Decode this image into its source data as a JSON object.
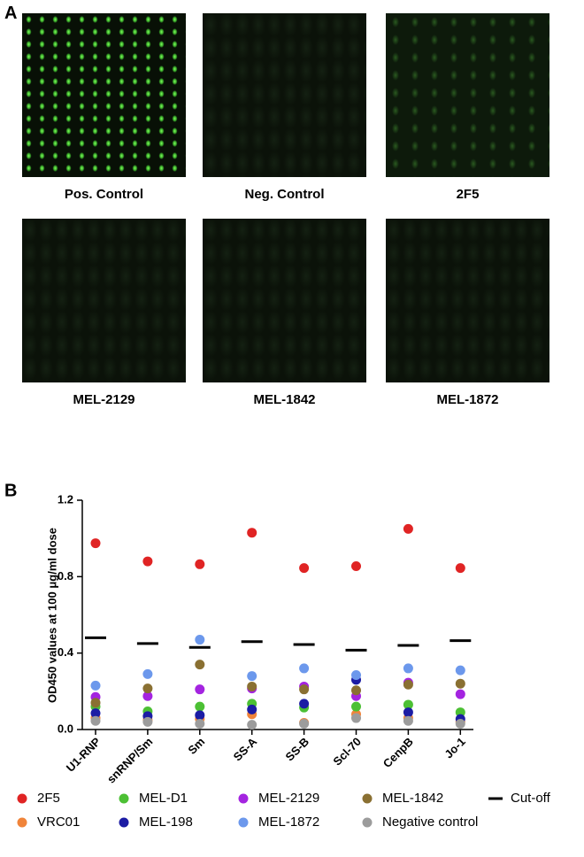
{
  "panel_a": {
    "label": "A",
    "images": [
      {
        "caption": "Pos. Control"
      },
      {
        "caption": "Neg. Control"
      },
      {
        "caption": "2F5"
      },
      {
        "caption": "MEL-2129"
      },
      {
        "caption": "MEL-1842"
      },
      {
        "caption": "MEL-1872"
      }
    ]
  },
  "chart_data": {
    "type": "scatter",
    "panel_label": "B",
    "y_label": "OD450 values at 100 μg/ml dose",
    "categories": [
      "U1-RNP",
      "snRNP/Sm",
      "Sm",
      "SS-A",
      "SS-B",
      "Scl-70",
      "CenpB",
      "Jo-1"
    ],
    "ylim": [
      0,
      1.2
    ],
    "yticks": [
      {
        "value": 0,
        "label": "0.0"
      },
      0.4,
      0.8,
      1.2
    ],
    "series": [
      {
        "name": "2F5",
        "color": "#e02424",
        "values": [
          0.975,
          0.88,
          0.865,
          1.03,
          0.845,
          0.855,
          1.05,
          0.845
        ]
      },
      {
        "name": "VRC01",
        "color": "#f0843a",
        "values": [
          0.06,
          0.05,
          0.055,
          0.08,
          0.035,
          0.08,
          0.06,
          0.04
        ]
      },
      {
        "name": "MEL-D1",
        "color": "#4cc034",
        "values": [
          0.12,
          0.095,
          0.12,
          0.135,
          0.115,
          0.12,
          0.13,
          0.09
        ]
      },
      {
        "name": "MEL-198",
        "color": "#1c1ca4",
        "values": [
          0.085,
          0.07,
          0.075,
          0.105,
          0.135,
          0.26,
          0.09,
          0.055
        ]
      },
      {
        "name": "MEL-2129",
        "color": "#a424e0",
        "values": [
          0.17,
          0.175,
          0.21,
          0.215,
          0.225,
          0.175,
          0.245,
          0.185
        ]
      },
      {
        "name": "MEL-1872",
        "color": "#6c98ec",
        "values": [
          0.23,
          0.29,
          0.47,
          0.28,
          0.32,
          0.285,
          0.32,
          0.31
        ]
      },
      {
        "name": "MEL-1842",
        "color": "#8a7032",
        "values": [
          0.14,
          0.215,
          0.34,
          0.225,
          0.21,
          0.205,
          0.235,
          0.24
        ]
      },
      {
        "name": "Negative control",
        "color": "#9c9c9c",
        "values": [
          0.045,
          0.04,
          0.03,
          0.025,
          0.03,
          0.06,
          0.045,
          0.03
        ]
      },
      {
        "name": "Cut-off",
        "color": "#000000",
        "marker": "dash",
        "values": [
          0.48,
          0.45,
          0.43,
          0.46,
          0.445,
          0.415,
          0.44,
          0.465
        ]
      }
    ]
  }
}
